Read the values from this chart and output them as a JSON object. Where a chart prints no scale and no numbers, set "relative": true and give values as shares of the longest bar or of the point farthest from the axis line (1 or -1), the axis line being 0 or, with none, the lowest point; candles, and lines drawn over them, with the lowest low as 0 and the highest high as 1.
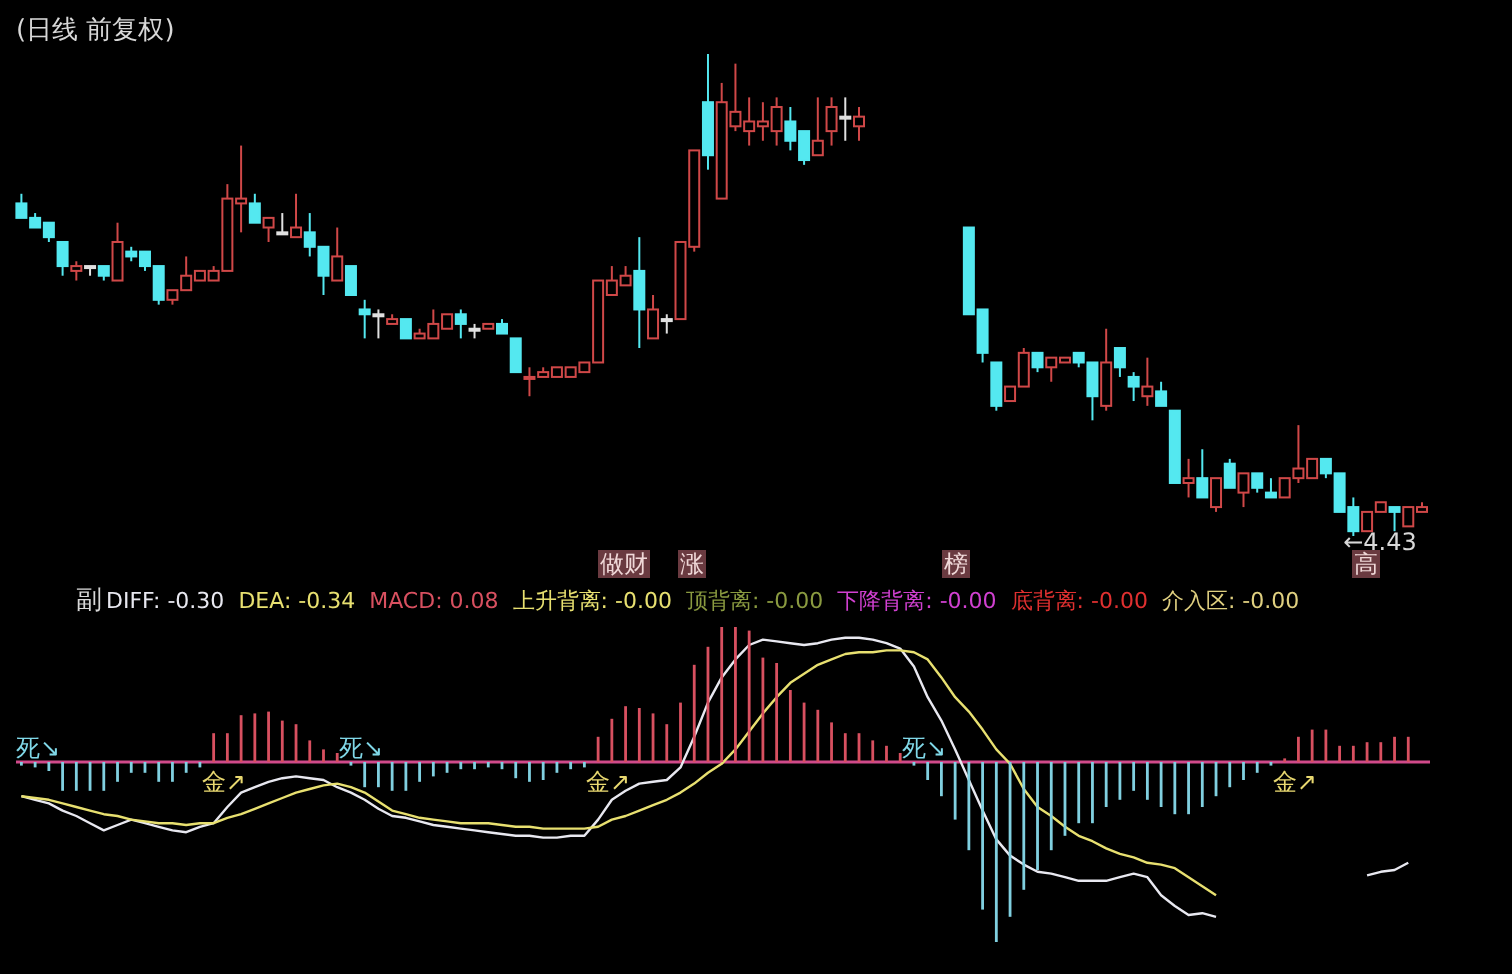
{
  "chart_data": [
    {
      "type": "candlestick",
      "title": "(日线 前复权)",
      "relative": true,
      "categories": [
        null,
        null,
        null,
        null,
        null,
        null,
        null,
        null,
        null,
        null,
        null,
        null,
        null,
        null,
        null,
        null,
        null,
        null,
        null,
        null,
        null,
        null,
        null,
        null,
        null,
        null,
        null,
        null,
        null,
        null,
        null,
        null,
        null,
        null,
        null,
        null,
        null,
        null,
        null,
        null,
        null,
        null,
        null,
        null,
        null,
        null,
        null,
        null,
        null,
        null,
        null,
        null,
        null,
        null,
        null,
        null,
        null,
        null,
        null,
        null,
        null,
        null,
        null,
        null,
        null,
        null,
        null,
        null,
        null,
        null,
        null,
        null,
        null,
        null,
        null,
        null,
        null,
        null,
        null,
        null,
        null,
        null,
        null,
        null,
        null,
        null,
        null,
        null,
        null,
        null,
        null,
        null,
        null,
        null,
        null,
        null,
        null,
        null,
        null,
        null,
        null,
        null,
        null
      ],
      "ohlc": [
        [
          0.69,
          0.71,
          0.66,
          0.66
        ],
        [
          0.66,
          0.67,
          0.64,
          0.64
        ],
        [
          0.65,
          0.65,
          0.61,
          0.62
        ],
        [
          0.61,
          0.61,
          0.54,
          0.56
        ],
        [
          0.55,
          0.57,
          0.53,
          0.56
        ],
        [
          0.56,
          0.56,
          0.54,
          0.56
        ],
        [
          0.56,
          0.56,
          0.53,
          0.54
        ],
        [
          0.53,
          0.65,
          0.53,
          0.61
        ],
        [
          0.59,
          0.6,
          0.57,
          0.58
        ],
        [
          0.59,
          0.59,
          0.55,
          0.56
        ],
        [
          0.56,
          0.56,
          0.48,
          0.49
        ],
        [
          0.49,
          0.51,
          0.48,
          0.51
        ],
        [
          0.51,
          0.58,
          0.51,
          0.54
        ],
        [
          0.53,
          0.55,
          0.53,
          0.55
        ],
        [
          0.53,
          0.56,
          0.53,
          0.55
        ],
        [
          0.55,
          0.73,
          0.55,
          0.7
        ],
        [
          0.69,
          0.81,
          0.63,
          0.7
        ],
        [
          0.69,
          0.71,
          0.65,
          0.65
        ],
        [
          0.64,
          0.66,
          0.61,
          0.66
        ],
        [
          0.63,
          0.67,
          0.63,
          0.63
        ],
        [
          0.62,
          0.71,
          0.62,
          0.64
        ],
        [
          0.63,
          0.67,
          0.58,
          0.6
        ],
        [
          0.6,
          0.6,
          0.5,
          0.54
        ],
        [
          0.53,
          0.64,
          0.53,
          0.58
        ],
        [
          0.56,
          0.56,
          0.5,
          0.5
        ],
        [
          0.47,
          0.49,
          0.41,
          0.46
        ],
        [
          0.46,
          0.47,
          0.41,
          0.46
        ],
        [
          0.44,
          0.46,
          0.44,
          0.45
        ],
        [
          0.45,
          0.45,
          0.41,
          0.41
        ],
        [
          0.41,
          0.43,
          0.41,
          0.42
        ],
        [
          0.41,
          0.47,
          0.41,
          0.44
        ],
        [
          0.43,
          0.46,
          0.43,
          0.46
        ],
        [
          0.46,
          0.47,
          0.41,
          0.44
        ],
        [
          0.43,
          0.44,
          0.41,
          0.43
        ],
        [
          0.43,
          0.44,
          0.43,
          0.44
        ],
        [
          0.44,
          0.45,
          0.42,
          0.42
        ],
        [
          0.41,
          0.41,
          0.34,
          0.34
        ],
        [
          0.33,
          0.35,
          0.29,
          0.33
        ],
        [
          0.33,
          0.35,
          0.33,
          0.34
        ],
        [
          0.33,
          0.35,
          0.33,
          0.35
        ],
        [
          0.33,
          0.35,
          0.33,
          0.35
        ],
        [
          0.34,
          0.36,
          0.34,
          0.36
        ],
        [
          0.36,
          0.53,
          0.36,
          0.53
        ],
        [
          0.5,
          0.56,
          0.5,
          0.53
        ],
        [
          0.52,
          0.56,
          0.52,
          0.54
        ],
        [
          0.55,
          0.62,
          0.39,
          0.47
        ],
        [
          0.41,
          0.5,
          0.41,
          0.47
        ],
        [
          0.45,
          0.46,
          0.42,
          0.45
        ],
        [
          0.45,
          0.61,
          0.45,
          0.61
        ],
        [
          0.6,
          0.8,
          0.59,
          0.8
        ],
        [
          0.9,
          1,
          0.76,
          0.79
        ],
        [
          0.7,
          0.94,
          0.7,
          0.9
        ],
        [
          0.85,
          0.98,
          0.84,
          0.88
        ],
        [
          0.84,
          0.91,
          0.81,
          0.86
        ],
        [
          0.85,
          0.9,
          0.82,
          0.86
        ],
        [
          0.84,
          0.91,
          0.81,
          0.89
        ],
        [
          0.86,
          0.89,
          0.8,
          0.82
        ],
        [
          0.84,
          0.84,
          0.77,
          0.78
        ],
        [
          0.79,
          0.91,
          0.79,
          0.82
        ],
        [
          0.84,
          0.91,
          0.81,
          0.89
        ],
        [
          0.87,
          0.91,
          0.82,
          0.87
        ],
        [
          0.85,
          0.89,
          0.82,
          0.87
        ],
        null,
        null,
        null,
        null,
        null,
        null,
        null,
        [
          0.64,
          0.64,
          0.46,
          0.46
        ],
        [
          0.47,
          0.47,
          0.36,
          0.38
        ],
        [
          0.36,
          0.36,
          0.26,
          0.27
        ],
        [
          0.28,
          0.31,
          0.28,
          0.31
        ],
        [
          0.31,
          0.39,
          0.31,
          0.38
        ],
        [
          0.38,
          0.38,
          0.34,
          0.35
        ],
        [
          0.35,
          0.37,
          0.32,
          0.37
        ],
        [
          0.36,
          0.37,
          0.36,
          0.37
        ],
        [
          0.38,
          0.38,
          0.35,
          0.36
        ],
        [
          0.36,
          0.36,
          0.24,
          0.29
        ],
        [
          0.27,
          0.43,
          0.26,
          0.36
        ],
        [
          0.39,
          0.39,
          0.33,
          0.35
        ],
        [
          0.33,
          0.34,
          0.28,
          0.31
        ],
        [
          0.29,
          0.37,
          0.27,
          0.31
        ],
        [
          0.3,
          0.32,
          0.27,
          0.27
        ],
        [
          0.26,
          0.26,
          0.11,
          0.11
        ],
        [
          0.11,
          0.16,
          0.08,
          0.12
        ],
        [
          0.12,
          0.18,
          0.08,
          0.08
        ],
        [
          0.06,
          0.12,
          0.05,
          0.12
        ],
        [
          0.15,
          0.16,
          0.1,
          0.1
        ],
        [
          0.09,
          0.13,
          0.06,
          0.13
        ],
        [
          0.13,
          0.13,
          0.09,
          0.1
        ],
        [
          0.09,
          0.12,
          0.08,
          0.08
        ],
        [
          0.08,
          0.12,
          0.08,
          0.12
        ],
        [
          0.12,
          0.23,
          0.11,
          0.14
        ],
        [
          0.12,
          0.16,
          0.12,
          0.16
        ],
        [
          0.16,
          0.16,
          0.12,
          0.13
        ],
        [
          0.13,
          0.13,
          0.05,
          0.05
        ],
        [
          0.06,
          0.08,
          0,
          0.01
        ],
        [
          0.01,
          0.05,
          0.01,
          0.05
        ],
        [
          0.05,
          0.07,
          0.05,
          0.07
        ],
        [
          0.06,
          0.06,
          0.01,
          0.05
        ],
        [
          0.02,
          0.06,
          0.02,
          0.06
        ],
        [
          0.05,
          0.07,
          0.05,
          0.06
        ]
      ],
      "colors": [
        "#54e8f0",
        "#54e8f0",
        "#54e8f0",
        "#54e8f0",
        "#d04848",
        "#e0e0e0",
        "#54e8f0",
        "#d04848",
        "#54e8f0",
        "#54e8f0",
        "#54e8f0",
        "#d04848",
        "#d04848",
        "#d04848",
        "#d04848",
        "#d04848",
        "#d04848",
        "#54e8f0",
        "#d04848",
        "#e0e0e0",
        "#d04848",
        "#54e8f0",
        "#54e8f0",
        "#d04848",
        "#54e8f0",
        "#54e8f0",
        "#e0e0e0",
        "#d04848",
        "#54e8f0",
        "#d04848",
        "#d04848",
        "#d04848",
        "#54e8f0",
        "#e0e0e0",
        "#d04848",
        "#54e8f0",
        "#54e8f0",
        "#d04848",
        "#d04848",
        "#d04848",
        "#d04848",
        "#d04848",
        "#d04848",
        "#d04848",
        "#d04848",
        "#54e8f0",
        "#d04848",
        "#e0e0e0",
        "#d04848",
        "#d04848",
        "#54e8f0",
        "#d04848",
        "#d04848",
        "#d04848",
        "#d04848",
        "#d04848",
        "#54e8f0",
        "#54e8f0",
        "#d04848",
        "#d04848",
        "#e0e0e0",
        "#d04848",
        null,
        null,
        null,
        null,
        null,
        null,
        null,
        "#54e8f0",
        "#54e8f0",
        "#54e8f0",
        "#d04848",
        "#d04848",
        "#54e8f0",
        "#d04848",
        "#d04848",
        "#54e8f0",
        "#54e8f0",
        "#d04848",
        "#54e8f0",
        "#54e8f0",
        "#d04848",
        "#54e8f0",
        "#54e8f0",
        "#d04848",
        "#54e8f0",
        "#d04848",
        "#54e8f0",
        "#d04848",
        "#54e8f0",
        "#54e8f0",
        "#d04848",
        "#d04848",
        "#d04848",
        "#54e8f0",
        "#54e8f0",
        "#54e8f0",
        "#d04848",
        "#d04848",
        "#54e8f0",
        "#d04848",
        "#d04848"
      ],
      "annotations": [
        "←4.43",
        "做财",
        "涨",
        "榜",
        "高"
      ]
    },
    {
      "type": "bar",
      "title": "副",
      "relative": true,
      "legend": "top left",
      "ref_lines": [
        {
          "axis": "y",
          "value": 0,
          "color": "#d04a8a"
        }
      ],
      "categories": [
        null,
        null,
        null,
        null,
        null,
        null,
        null,
        null,
        null,
        null,
        null,
        null,
        null,
        null,
        null,
        null,
        null,
        null,
        null,
        null,
        null,
        null,
        null,
        null,
        null,
        null,
        null,
        null,
        null,
        null,
        null,
        null,
        null,
        null,
        null,
        null,
        null,
        null,
        null,
        null,
        null,
        null,
        null,
        null,
        null,
        null,
        null,
        null,
        null,
        null,
        null,
        null,
        null,
        null,
        null,
        null,
        null,
        null,
        null,
        null,
        null,
        null,
        null,
        null,
        null,
        null,
        null,
        null,
        null,
        null,
        null,
        null,
        null,
        null,
        null,
        null,
        null,
        null,
        null,
        null,
        null,
        null,
        null,
        null,
        null,
        null,
        null,
        null,
        null,
        null,
        null,
        null,
        null,
        null,
        null,
        null,
        null,
        null,
        null,
        null,
        null,
        null,
        null
      ],
      "series": [
        {
          "name": "DIFF: -0.30",
          "type": "line",
          "color": "#e8e8f0",
          "values": [
            -0.19,
            -0.21,
            -0.23,
            -0.27,
            -0.3,
            -0.34,
            -0.38,
            -0.35,
            -0.32,
            -0.34,
            -0.36,
            -0.38,
            -0.39,
            -0.36,
            -0.34,
            -0.25,
            -0.17,
            -0.14,
            -0.11,
            -0.09,
            -0.08,
            -0.09,
            -0.1,
            -0.14,
            -0.17,
            -0.21,
            -0.26,
            -0.3,
            -0.31,
            -0.33,
            -0.35,
            -0.36,
            -0.37,
            -0.38,
            -0.39,
            -0.4,
            -0.41,
            -0.41,
            -0.42,
            -0.42,
            -0.41,
            -0.41,
            -0.32,
            -0.21,
            -0.16,
            -0.12,
            -0.11,
            -0.1,
            -0.03,
            0.14,
            0.33,
            0.47,
            0.57,
            0.65,
            0.68,
            0.67,
            0.66,
            0.65,
            0.66,
            0.68,
            0.69,
            0.69,
            0.68,
            0.66,
            0.63,
            0.53,
            0.36,
            0.23,
            0.07,
            -0.1,
            -0.27,
            -0.43,
            -0.52,
            -0.57,
            -0.61,
            -0.62,
            -0.64,
            -0.66,
            -0.66,
            -0.66,
            -0.64,
            -0.62,
            -0.64,
            -0.74,
            -0.8,
            -0.85,
            -0.84,
            -0.86,
            null,
            null,
            null,
            null,
            null,
            null,
            null,
            null,
            null,
            null,
            -0.63,
            -0.61,
            -0.6,
            -0.56,
            null
          ]
        },
        {
          "name": "DEA: -0.34",
          "type": "line",
          "color": "#e8e070",
          "values": [
            -0.19,
            -0.2,
            -0.21,
            -0.23,
            -0.25,
            -0.27,
            -0.29,
            -0.3,
            -0.32,
            -0.33,
            -0.34,
            -0.34,
            -0.35,
            -0.34,
            -0.34,
            -0.31,
            -0.29,
            -0.26,
            -0.23,
            -0.2,
            -0.17,
            -0.15,
            -0.13,
            -0.12,
            -0.14,
            -0.17,
            -0.22,
            -0.27,
            -0.29,
            -0.31,
            -0.32,
            -0.33,
            -0.34,
            -0.34,
            -0.34,
            -0.35,
            -0.36,
            -0.36,
            -0.37,
            -0.37,
            -0.37,
            -0.37,
            -0.36,
            -0.32,
            -0.3,
            -0.27,
            -0.24,
            -0.21,
            -0.17,
            -0.12,
            -0.06,
            -0.01,
            0.07,
            0.17,
            0.27,
            0.36,
            0.44,
            0.49,
            0.54,
            0.57,
            0.6,
            0.61,
            0.61,
            0.62,
            0.62,
            0.61,
            0.57,
            0.47,
            0.36,
            0.28,
            0.18,
            0.07,
            -0.01,
            -0.15,
            -0.25,
            -0.3,
            -0.36,
            -0.41,
            -0.44,
            -0.48,
            -0.51,
            -0.53,
            -0.56,
            -0.57,
            -0.59,
            -0.64,
            -0.69,
            -0.74,
            null,
            null,
            null,
            null,
            null,
            null,
            null,
            null,
            null,
            null,
            null,
            null,
            null,
            null,
            null
          ]
        },
        {
          "name": "MACD: 0.08",
          "type": "bar",
          "color": "#d85060",
          "values": [
            -0.02,
            -0.03,
            -0.05,
            -0.16,
            -0.16,
            -0.16,
            -0.16,
            -0.11,
            -0.06,
            -0.06,
            -0.11,
            -0.11,
            -0.06,
            -0.03,
            0.16,
            0.16,
            0.26,
            0.27,
            0.28,
            0.23,
            0.21,
            0.12,
            0.07,
            0.05,
            -0.02,
            -0.14,
            -0.14,
            -0.16,
            -0.16,
            -0.11,
            -0.08,
            -0.06,
            -0.04,
            -0.04,
            -0.03,
            -0.04,
            -0.09,
            -0.11,
            -0.1,
            -0.06,
            -0.04,
            -0.03,
            0.14,
            0.24,
            0.31,
            0.3,
            0.27,
            0.21,
            0.33,
            0.54,
            0.64,
            0.75,
            0.75,
            0.73,
            0.58,
            0.55,
            0.4,
            0.33,
            0.29,
            0.22,
            0.16,
            0.16,
            0.12,
            0.09,
            0.05,
            -0.02,
            -0.1,
            -0.19,
            -0.32,
            -0.49,
            -0.82,
            -1,
            -0.86,
            -0.71,
            -0.6,
            -0.49,
            -0.41,
            -0.34,
            -0.34,
            -0.25,
            -0.21,
            -0.16,
            -0.21,
            -0.25,
            -0.29,
            -0.29,
            -0.25,
            -0.19,
            -0.14,
            -0.1,
            -0.06,
            -0.02,
            0.02,
            0.14,
            0.18,
            0.18,
            0.09,
            0.09,
            0.11,
            0.11,
            0.14,
            0.14,
            null
          ],
          "colors": [
            "#80d0e0",
            "#80d0e0",
            "#80d0e0",
            "#80d0e0",
            "#80d0e0",
            "#80d0e0",
            "#80d0e0",
            "#80d0e0",
            "#80d0e0",
            "#80d0e0",
            "#80d0e0",
            "#80d0e0",
            "#80d0e0",
            "#80d0e0",
            "#d85060",
            "#d85060",
            "#d85060",
            "#d85060",
            "#d85060",
            "#d85060",
            "#d85060",
            "#d85060",
            "#d85060",
            "#d85060",
            "#80d0e0",
            "#80d0e0",
            "#80d0e0",
            "#80d0e0",
            "#80d0e0",
            "#80d0e0",
            "#80d0e0",
            "#80d0e0",
            "#80d0e0",
            "#80d0e0",
            "#80d0e0",
            "#80d0e0",
            "#80d0e0",
            "#80d0e0",
            "#80d0e0",
            "#80d0e0",
            "#80d0e0",
            "#80d0e0",
            "#d85060",
            "#d85060",
            "#d85060",
            "#d85060",
            "#d85060",
            "#d85060",
            "#d85060",
            "#d85060",
            "#d85060",
            "#d85060",
            "#d85060",
            "#d85060",
            "#d85060",
            "#d85060",
            "#d85060",
            "#d85060",
            "#d85060",
            "#d85060",
            "#d85060",
            "#d85060",
            "#d85060",
            "#d85060",
            "#d85060",
            "#80d0e0",
            "#80d0e0",
            "#80d0e0",
            "#80d0e0",
            "#80d0e0",
            "#80d0e0",
            "#80d0e0",
            "#80d0e0",
            "#80d0e0",
            "#80d0e0",
            "#80d0e0",
            "#80d0e0",
            "#80d0e0",
            "#80d0e0",
            "#80d0e0",
            "#80d0e0",
            "#80d0e0",
            "#80d0e0",
            "#80d0e0",
            "#80d0e0",
            "#80d0e0",
            "#80d0e0",
            "#80d0e0",
            "#80d0e0",
            "#80d0e0",
            "#80d0e0",
            "#80d0e0",
            "#d85060",
            "#d85060",
            "#d85060",
            "#d85060",
            "#d85060",
            "#d85060",
            "#d85060",
            "#d85060",
            "#d85060",
            "#d85060",
            null
          ]
        }
      ],
      "annotations": [
        "上升背离: -0.00",
        "顶背离: -0.00",
        "下降背离: -0.00",
        "底背离: -0.00",
        "介入区: -0.00",
        {
          "text": "死↘",
          "y": 0
        },
        {
          "text": "金↗",
          "y": 0
        },
        {
          "text": "死↘",
          "y": 0
        },
        {
          "text": "金↗",
          "y": 0
        },
        {
          "text": "死↘",
          "y": 0
        },
        {
          "text": "金↗",
          "y": 0
        }
      ]
    }
  ]
}
